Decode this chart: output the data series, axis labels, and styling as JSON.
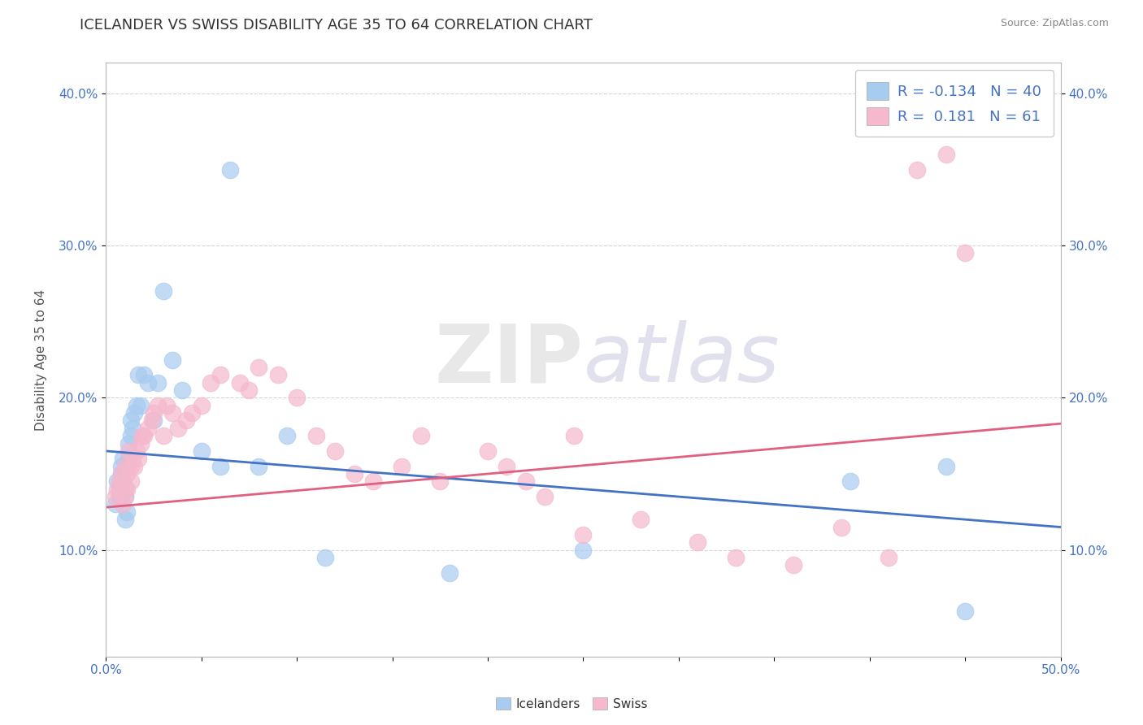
{
  "title": "ICELANDER VS SWISS DISABILITY AGE 35 TO 64 CORRELATION CHART",
  "source_text": "Source: ZipAtlas.com",
  "ylabel": "Disability Age 35 to 64",
  "xlim": [
    0.0,
    0.5
  ],
  "ylim": [
    0.03,
    0.42
  ],
  "icelanders_color": "#A8CBF0",
  "swiss_color": "#F5B8CC",
  "icelanders_line_color": "#4472C4",
  "swiss_line_color": "#E06080",
  "R_icelanders": -0.134,
  "N_icelanders": 40,
  "R_swiss": 0.181,
  "N_swiss": 61,
  "ice_trend_x0": 0.0,
  "ice_trend_y0": 0.165,
  "ice_trend_x1": 0.5,
  "ice_trend_y1": 0.115,
  "swiss_trend_x0": 0.0,
  "swiss_trend_y0": 0.128,
  "swiss_trend_x1": 0.5,
  "swiss_trend_y1": 0.183,
  "icelanders_x": [
    0.005,
    0.006,
    0.007,
    0.007,
    0.008,
    0.008,
    0.009,
    0.009,
    0.01,
    0.01,
    0.01,
    0.011,
    0.011,
    0.012,
    0.012,
    0.013,
    0.013,
    0.014,
    0.015,
    0.016,
    0.017,
    0.018,
    0.02,
    0.022,
    0.025,
    0.027,
    0.03,
    0.035,
    0.04,
    0.05,
    0.06,
    0.065,
    0.08,
    0.095,
    0.115,
    0.18,
    0.25,
    0.39,
    0.44,
    0.45
  ],
  "icelanders_y": [
    0.13,
    0.145,
    0.14,
    0.135,
    0.155,
    0.15,
    0.16,
    0.145,
    0.14,
    0.135,
    0.12,
    0.155,
    0.125,
    0.17,
    0.16,
    0.175,
    0.185,
    0.18,
    0.19,
    0.195,
    0.215,
    0.195,
    0.215,
    0.21,
    0.185,
    0.21,
    0.27,
    0.225,
    0.205,
    0.165,
    0.155,
    0.35,
    0.155,
    0.175,
    0.095,
    0.085,
    0.1,
    0.145,
    0.155,
    0.06
  ],
  "swiss_x": [
    0.005,
    0.006,
    0.007,
    0.008,
    0.008,
    0.009,
    0.009,
    0.01,
    0.01,
    0.011,
    0.011,
    0.012,
    0.013,
    0.013,
    0.014,
    0.015,
    0.016,
    0.017,
    0.018,
    0.019,
    0.02,
    0.022,
    0.024,
    0.025,
    0.027,
    0.03,
    0.032,
    0.035,
    0.038,
    0.042,
    0.045,
    0.05,
    0.055,
    0.06,
    0.07,
    0.075,
    0.08,
    0.09,
    0.1,
    0.11,
    0.12,
    0.13,
    0.14,
    0.155,
    0.165,
    0.175,
    0.2,
    0.21,
    0.22,
    0.23,
    0.25,
    0.28,
    0.31,
    0.33,
    0.36,
    0.385,
    0.41,
    0.425,
    0.44,
    0.45,
    0.245
  ],
  "swiss_y": [
    0.135,
    0.14,
    0.145,
    0.14,
    0.15,
    0.13,
    0.145,
    0.155,
    0.135,
    0.15,
    0.14,
    0.165,
    0.155,
    0.145,
    0.16,
    0.155,
    0.165,
    0.16,
    0.17,
    0.175,
    0.175,
    0.18,
    0.185,
    0.19,
    0.195,
    0.175,
    0.195,
    0.19,
    0.18,
    0.185,
    0.19,
    0.195,
    0.21,
    0.215,
    0.21,
    0.205,
    0.22,
    0.215,
    0.2,
    0.175,
    0.165,
    0.15,
    0.145,
    0.155,
    0.175,
    0.145,
    0.165,
    0.155,
    0.145,
    0.135,
    0.11,
    0.12,
    0.105,
    0.095,
    0.09,
    0.115,
    0.095,
    0.35,
    0.36,
    0.295,
    0.175
  ],
  "watermark_zip": "ZIP",
  "watermark_atlas": "atlas",
  "background_color": "#FFFFFF",
  "grid_color": "#CCCCCC"
}
